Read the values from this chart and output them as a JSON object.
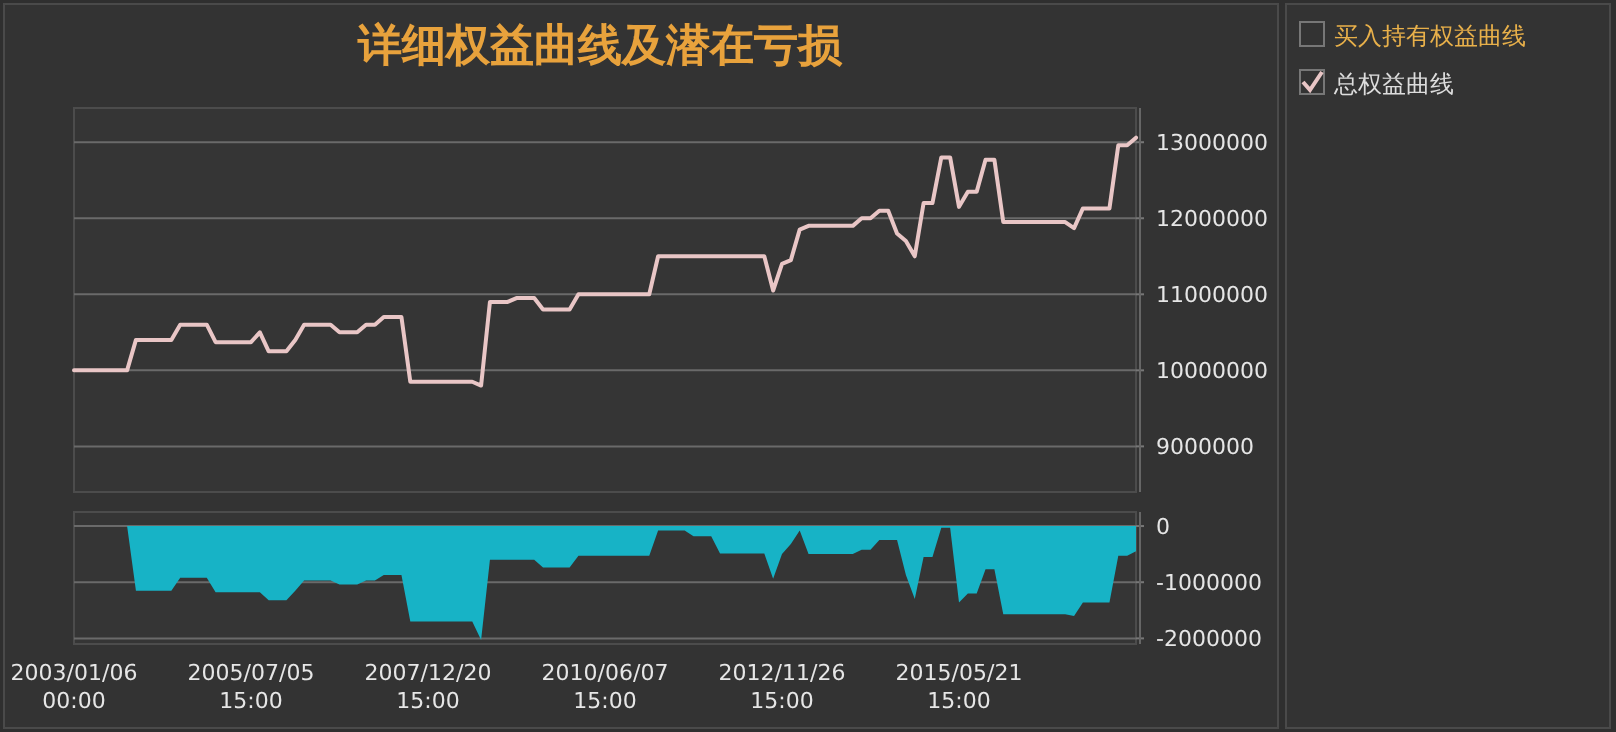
{
  "chart_data": [
    {
      "type": "line",
      "title": "详细权益曲线及潜在亏损",
      "legend": "right",
      "grid": "y",
      "tick_labels": "y",
      "ylim": [
        8400000,
        13450000
      ],
      "yticks": [
        9000000,
        10000000,
        11000000,
        12000000,
        13000000
      ],
      "categories": [
        "2003/01/06 00:00",
        null,
        null,
        null,
        null,
        null,
        null,
        null,
        null,
        null,
        null,
        null,
        null,
        null,
        null,
        null,
        null,
        null,
        null,
        null,
        "2005/07/05 15:00",
        null,
        null,
        null,
        null,
        null,
        null,
        null,
        null,
        null,
        null,
        null,
        null,
        null,
        null,
        null,
        null,
        null,
        null,
        null,
        "2007/12/20 15:00",
        null,
        null,
        null,
        null,
        null,
        null,
        null,
        null,
        null,
        null,
        null,
        null,
        null,
        null,
        null,
        null,
        null,
        null,
        null,
        "2010/06/07 15:00",
        null,
        null,
        null,
        null,
        null,
        null,
        null,
        null,
        null,
        null,
        null,
        null,
        null,
        null,
        null,
        null,
        null,
        null,
        null,
        "2012/11/26 15:00",
        null,
        null,
        null,
        null,
        null,
        null,
        null,
        null,
        null,
        null,
        null,
        null,
        null,
        null,
        null,
        null,
        null,
        null,
        null,
        "2015/05/21 15:00",
        null,
        null,
        null,
        null,
        null,
        null,
        null,
        null,
        null,
        null,
        null,
        null,
        null,
        null,
        null,
        null,
        null,
        null,
        null,
        null
      ],
      "series": [
        {
          "name": "买入持有权益曲线",
          "values": [
            null,
            null,
            null,
            null,
            null,
            null,
            null,
            null,
            null,
            null,
            null,
            null,
            null,
            null,
            null,
            null,
            null,
            null,
            null,
            null,
            null,
            null,
            null,
            null,
            null,
            null,
            null,
            null,
            null,
            null,
            null,
            null,
            null,
            null,
            null,
            null,
            null,
            null,
            null,
            null,
            null,
            null,
            null,
            null,
            null,
            null,
            null,
            null,
            null,
            null,
            null,
            null,
            null,
            null,
            null,
            null,
            null,
            null,
            null,
            null,
            null,
            null,
            null,
            null,
            null,
            null,
            null,
            null,
            null,
            null,
            null,
            null,
            null,
            null,
            null,
            null,
            null,
            null,
            null,
            null,
            null,
            null,
            null,
            null,
            null,
            null,
            null,
            null,
            null,
            null,
            null,
            null,
            null,
            null,
            null,
            null,
            null,
            null,
            null,
            null,
            null,
            null,
            null,
            null,
            null,
            null,
            null,
            null,
            null,
            null,
            null,
            null,
            null,
            null,
            null,
            null,
            null,
            null,
            null,
            null,
            null
          ]
        },
        {
          "name": "总权益曲线",
          "color": "#e9c6c6",
          "values": [
            10000000,
            10000000,
            10000000,
            10000000,
            10000000,
            10000000,
            10000000,
            10400000,
            10400000,
            10400000,
            10400000,
            10400000,
            10600000,
            10600000,
            10600000,
            10600000,
            10370000,
            10370000,
            10370000,
            10370000,
            10370000,
            10500000,
            10250000,
            10250000,
            10250000,
            10400000,
            10600000,
            10600000,
            10600000,
            10600000,
            10500000,
            10500000,
            10500000,
            10600000,
            10600000,
            10700000,
            10700000,
            10700000,
            9850000,
            9850000,
            9850000,
            9850000,
            9850000,
            9850000,
            9850000,
            9850000,
            9800000,
            10900000,
            10900000,
            10900000,
            10950000,
            10950000,
            10950000,
            10800000,
            10800000,
            10800000,
            10800000,
            11000000,
            11000000,
            11000000,
            11000000,
            11000000,
            11000000,
            11000000,
            11000000,
            11000000,
            11500000,
            11500000,
            11500000,
            11500000,
            11500000,
            11500000,
            11500000,
            11500000,
            11500000,
            11500000,
            11500000,
            11500000,
            11500000,
            11050000,
            11400000,
            11450000,
            11850000,
            11900000,
            11900000,
            11900000,
            11900000,
            11900000,
            11900000,
            12000000,
            12000000,
            12100000,
            12100000,
            11800000,
            11700000,
            11500000,
            12200000,
            12200000,
            12800000,
            12800000,
            12150000,
            12350000,
            12350000,
            12770000,
            12770000,
            11950000,
            11950000,
            11950000,
            11950000,
            11950000,
            11950000,
            11950000,
            11950000,
            11870000,
            12130000,
            12130000,
            12130000,
            12130000,
            12960000,
            12960000,
            13060000
          ]
        }
      ]
    },
    {
      "type": "area",
      "grid": "y",
      "ylim": [
        -2100000,
        250000
      ],
      "yticks": [
        0,
        -1000000,
        -2000000
      ],
      "color": "#17b3c6",
      "categories": [
        "2003/01/06 00:00",
        null,
        null,
        null,
        null,
        null,
        null,
        null,
        null,
        null,
        null,
        null,
        null,
        null,
        null,
        null,
        null,
        null,
        null,
        null,
        "2005/07/05 15:00",
        null,
        null,
        null,
        null,
        null,
        null,
        null,
        null,
        null,
        null,
        null,
        null,
        null,
        null,
        null,
        null,
        null,
        null,
        null,
        "2007/12/20 15:00",
        null,
        null,
        null,
        null,
        null,
        null,
        null,
        null,
        null,
        null,
        null,
        null,
        null,
        null,
        null,
        null,
        null,
        null,
        null,
        "2010/06/07 15:00",
        null,
        null,
        null,
        null,
        null,
        null,
        null,
        null,
        null,
        null,
        null,
        null,
        null,
        null,
        null,
        null,
        null,
        null,
        null,
        "2012/11/26 15:00",
        null,
        null,
        null,
        null,
        null,
        null,
        null,
        null,
        null,
        null,
        null,
        null,
        null,
        null,
        null,
        null,
        null,
        null,
        null,
        "2015/05/21 15:00",
        null,
        null,
        null,
        null,
        null,
        null,
        null,
        null,
        null,
        null,
        null,
        null,
        null,
        null,
        null,
        null,
        null,
        null,
        null,
        null
      ],
      "values": [
        0,
        0,
        0,
        0,
        0,
        0,
        0,
        -1150000,
        -1150000,
        -1150000,
        -1150000,
        -1150000,
        -920000,
        -920000,
        -920000,
        -920000,
        -1180000,
        -1180000,
        -1180000,
        -1180000,
        -1180000,
        -1180000,
        -1320000,
        -1320000,
        -1320000,
        -1150000,
        -970000,
        -970000,
        -970000,
        -970000,
        -1040000,
        -1040000,
        -1040000,
        -970000,
        -970000,
        -870000,
        -870000,
        -870000,
        -1700000,
        -1700000,
        -1700000,
        -1700000,
        -1700000,
        -1700000,
        -1700000,
        -1700000,
        -2030000,
        -600000,
        -600000,
        -600000,
        -600000,
        -600000,
        -600000,
        -740000,
        -740000,
        -740000,
        -740000,
        -530000,
        -530000,
        -530000,
        -530000,
        -530000,
        -530000,
        -530000,
        -530000,
        -530000,
        -80000,
        -80000,
        -80000,
        -80000,
        -180000,
        -180000,
        -180000,
        -490000,
        -490000,
        -490000,
        -490000,
        -490000,
        -490000,
        -940000,
        -500000,
        -320000,
        -80000,
        -500000,
        -500000,
        -500000,
        -500000,
        -500000,
        -500000,
        -420000,
        -420000,
        -250000,
        -250000,
        -250000,
        -870000,
        -1300000,
        -550000,
        -550000,
        -30000,
        -30000,
        -1360000,
        -1200000,
        -1200000,
        -770000,
        -770000,
        -1570000,
        -1570000,
        -1570000,
        -1570000,
        -1570000,
        -1570000,
        -1570000,
        -1570000,
        -1600000,
        -1360000,
        -1360000,
        -1360000,
        -1360000,
        -530000,
        -530000,
        -450000
      ]
    }
  ]
}
